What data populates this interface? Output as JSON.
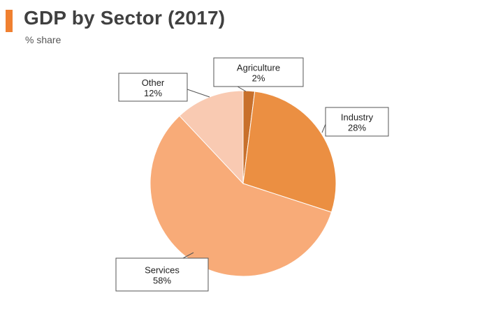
{
  "header": {
    "title": "GDP by Sector (2017)",
    "subtitle": "% share",
    "accent_color": "#f08030"
  },
  "chart_data": {
    "type": "pie",
    "title": "GDP by Sector (2017)",
    "subtitle": "% share",
    "legend": "none",
    "slices": [
      {
        "name": "Agriculture",
        "value": 2,
        "label": "2%",
        "color": "#c8702c"
      },
      {
        "name": "Industry",
        "value": 28,
        "label": "28%",
        "color": "#eb8f42"
      },
      {
        "name": "Services",
        "value": 58,
        "label": "58%",
        "color": "#f8ab78"
      },
      {
        "name": "Other",
        "value": 12,
        "label": "12%",
        "color": "#f9cab2"
      }
    ]
  }
}
